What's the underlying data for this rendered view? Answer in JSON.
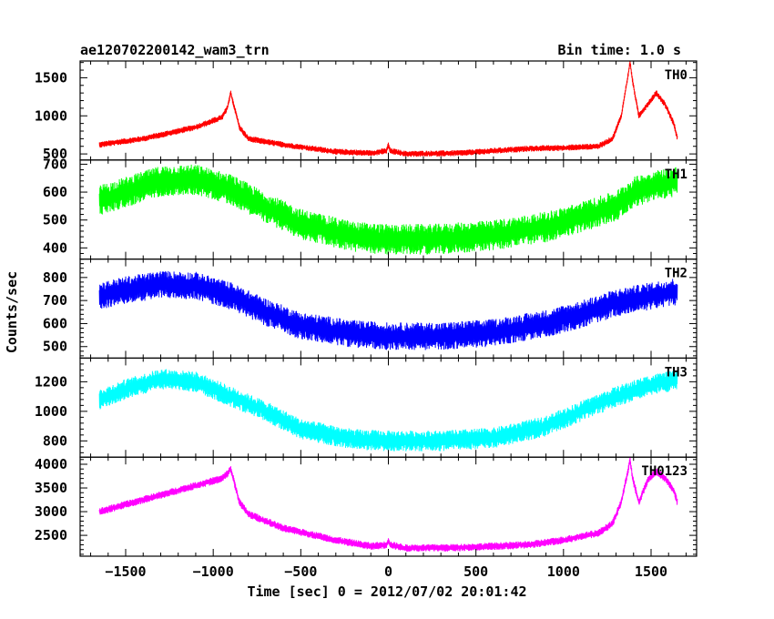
{
  "chart_data": {
    "type": "line",
    "title": "ae120702200142_wam3_trn",
    "bin_label": "Bin time: 1.0 s",
    "xlabel": "Time [sec] 0 = 2012/07/02 20:01:42",
    "ylabel": "Counts/sec",
    "xlim": [
      -1760,
      1760
    ],
    "x_ticks": [
      -1500,
      -1000,
      -500,
      0,
      500,
      1000,
      1500
    ],
    "x_tick_labels": [
      "−1500",
      "−1000",
      "−500",
      "0",
      "500",
      "1000",
      "1500"
    ],
    "x_data_range": [
      -1650,
      1650
    ],
    "panels": [
      {
        "name": "TH0",
        "color": "#ff0000",
        "ylim": [
          420,
          1720
        ],
        "y_ticks": [
          500,
          1000,
          1500
        ],
        "noise": 40,
        "trend_x": [
          -1650,
          -1400,
          -1100,
          -950,
          -920,
          -900,
          -850,
          -800,
          -600,
          -300,
          -100,
          -10,
          0,
          10,
          100,
          400,
          800,
          1000,
          1200,
          1280,
          1330,
          1370,
          1380,
          1395,
          1430,
          1480,
          1530,
          1580,
          1630,
          1650
        ],
        "trend_y": [
          620,
          700,
          850,
          980,
          1100,
          1300,
          850,
          700,
          620,
          530,
          510,
          540,
          620,
          540,
          500,
          510,
          570,
          580,
          600,
          700,
          1000,
          1550,
          1700,
          1450,
          1000,
          1150,
          1300,
          1150,
          900,
          700
        ]
      },
      {
        "name": "TH1",
        "color": "#00ff00",
        "ylim": [
          360,
          715
        ],
        "y_ticks": [
          400,
          500,
          600,
          700
        ],
        "noise": 55,
        "trend_x": [
          -1650,
          -1500,
          -1300,
          -1100,
          -900,
          -700,
          -500,
          -200,
          0,
          300,
          600,
          900,
          1100,
          1300,
          1400,
          1500,
          1650
        ],
        "trend_y": [
          570,
          600,
          640,
          645,
          610,
          545,
          485,
          440,
          430,
          432,
          445,
          475,
          510,
          550,
          600,
          620,
          640
        ]
      },
      {
        "name": "TH2",
        "color": "#0000ff",
        "ylim": [
          450,
          880
        ],
        "y_ticks": [
          500,
          600,
          700,
          800
        ],
        "noise": 60,
        "trend_x": [
          -1650,
          -1500,
          -1300,
          -1100,
          -900,
          -700,
          -500,
          -200,
          0,
          300,
          600,
          900,
          1100,
          1300,
          1500,
          1650
        ],
        "trend_y": [
          720,
          745,
          770,
          765,
          720,
          650,
          590,
          555,
          545,
          545,
          560,
          600,
          640,
          690,
          720,
          740
        ]
      },
      {
        "name": "TH3",
        "color": "#00ffff",
        "ylim": [
          690,
          1360
        ],
        "y_ticks": [
          800,
          1000,
          1200
        ],
        "noise": 70,
        "trend_x": [
          -1650,
          -1500,
          -1300,
          -1100,
          -900,
          -700,
          -500,
          -200,
          0,
          300,
          600,
          900,
          1100,
          1300,
          1500,
          1650
        ],
        "trend_y": [
          1080,
          1150,
          1220,
          1200,
          1100,
          1000,
          880,
          810,
          800,
          800,
          820,
          900,
          1000,
          1100,
          1180,
          1210
        ]
      },
      {
        "name": "TH0123",
        "color": "#ff00ff",
        "ylim": [
          2060,
          4150
        ],
        "y_ticks": [
          2500,
          3000,
          3500,
          4000
        ],
        "noise": 80,
        "trend_x": [
          -1650,
          -1400,
          -1100,
          -950,
          -920,
          -900,
          -850,
          -800,
          -600,
          -300,
          -100,
          -10,
          0,
          10,
          100,
          400,
          800,
          1000,
          1200,
          1280,
          1330,
          1370,
          1380,
          1395,
          1430,
          1480,
          1530,
          1580,
          1630,
          1650
        ],
        "trend_y": [
          3000,
          3250,
          3550,
          3700,
          3800,
          3900,
          3200,
          2950,
          2650,
          2400,
          2270,
          2300,
          2400,
          2300,
          2230,
          2240,
          2300,
          2400,
          2550,
          2750,
          3200,
          3900,
          4100,
          3700,
          3200,
          3650,
          3850,
          3700,
          3450,
          3200
        ]
      }
    ]
  }
}
